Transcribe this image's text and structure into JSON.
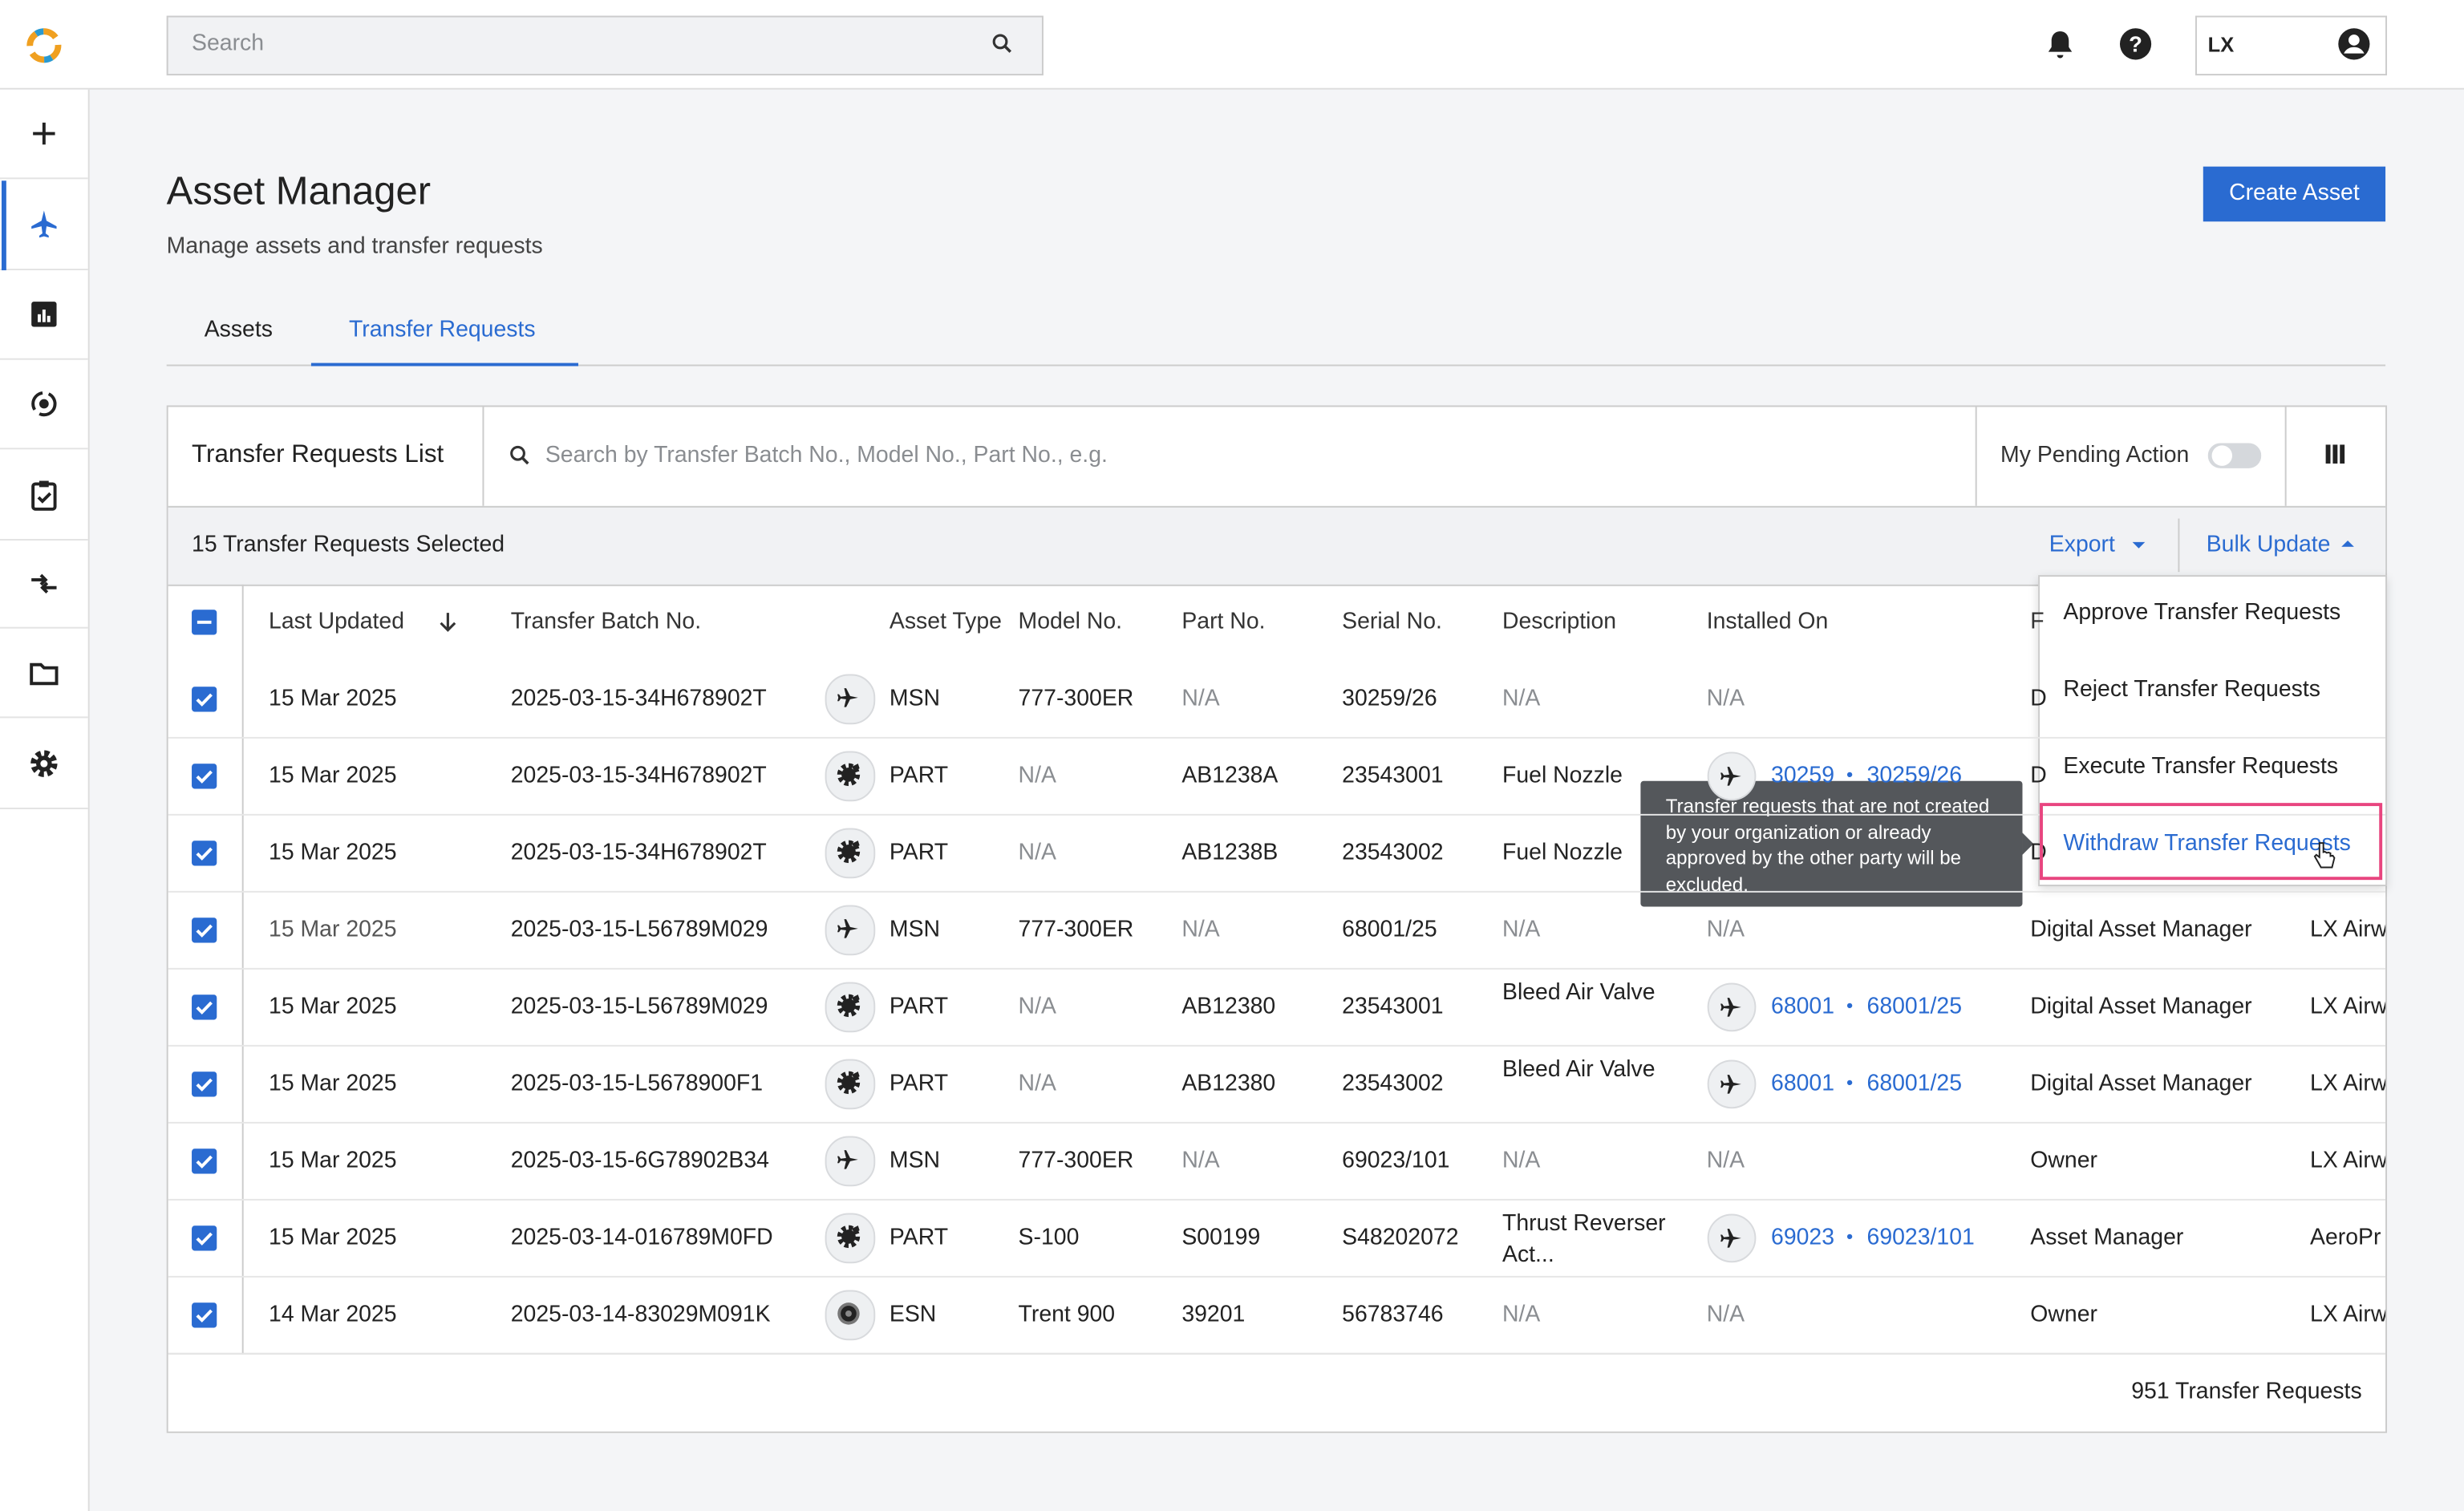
{
  "header": {
    "search_placeholder": "Search",
    "user": "LX"
  },
  "sidebar": {
    "active": 1
  },
  "page": {
    "title": "Asset Manager",
    "subtitle": "Manage assets and transfer requests",
    "create_button": "Create Asset"
  },
  "tabs": {
    "items": [
      "Assets",
      "Transfer Requests"
    ],
    "active": 1
  },
  "list": {
    "title": "Transfer Requests List",
    "search_placeholder": "Search by Transfer Batch No., Model No., Part No., e.g.",
    "pending_toggle": "My Pending Action",
    "selected_text": "15 Transfer Requests Selected",
    "export": "Export",
    "bulk_update": "Bulk Update",
    "columns": [
      "Last Updated",
      "Transfer Batch No.",
      "Asset Type",
      "Model No.",
      "Part No.",
      "Serial No.",
      "Description",
      "Installed On",
      "F",
      null
    ],
    "separator": "•",
    "rows": [
      [
        "15 Mar 2025",
        "2025-03-15-34H678902T",
        "MSN",
        "777-300ER",
        "N/A",
        "30259/26",
        "N/A",
        "N/A",
        "D",
        null
      ],
      [
        "15 Mar 2025",
        "2025-03-15-34H678902T",
        "PART",
        "N/A",
        "AB1238A",
        "23543001",
        "Fuel Nozzle",
        {
          "msn": "30259",
          "serial": "30259/26"
        },
        "D",
        null
      ],
      [
        "15 Mar 2025",
        "2025-03-15-34H678902T",
        "PART",
        "N/A",
        "AB1238B",
        "23543002",
        "Fuel Nozzle",
        null,
        "D",
        null
      ],
      [
        "15 Mar 2025",
        "2025-03-15-L56789M029",
        "MSN",
        "777-300ER",
        "N/A",
        "68001/25",
        "N/A",
        "N/A",
        "Digital Asset Manager",
        "LX Airw"
      ],
      [
        "15 Mar 2025",
        "2025-03-15-L56789M029",
        "PART",
        "N/A",
        "AB12380",
        "23543001",
        "Bleed Air Valve",
        {
          "msn": "68001",
          "serial": "68001/25"
        },
        "Digital Asset Manager",
        "LX Airw"
      ],
      [
        "15 Mar 2025",
        "2025-03-15-L5678900F1",
        "PART",
        "N/A",
        "AB12380",
        "23543002",
        "Bleed Air Valve",
        {
          "msn": "68001",
          "serial": "68001/25"
        },
        "Digital Asset Manager",
        "LX Airw"
      ],
      [
        "15 Mar 2025",
        "2025-03-15-6G78902B34",
        "MSN",
        "777-300ER",
        "N/A",
        "69023/101",
        "N/A",
        "N/A",
        "Owner",
        "LX Airw"
      ],
      [
        "15 Mar 2025",
        "2025-03-14-016789M0FD",
        "PART",
        "S-100",
        "S00199",
        "S48202072",
        "Thrust Reverser Act...",
        {
          "msn": "69023",
          "serial": "69023/101"
        },
        "Asset Manager",
        "AeroPr"
      ],
      [
        "14 Mar 2025",
        "2025-03-14-83029M091K",
        "ESN",
        "Trent 900",
        "39201",
        "56783746",
        "N/A",
        "N/A",
        "Owner",
        "LX Airw"
      ]
    ],
    "total": "951 Transfer Requests"
  },
  "dropdown": {
    "items": [
      "Approve Transfer Requests",
      "Reject Transfer Requests",
      "Execute Transfer Requests",
      "Withdraw Transfer Requests"
    ],
    "highlighted": 3
  },
  "tooltip": "Transfer requests that are not created by your organization or already approved by the other party will be excluded."
}
